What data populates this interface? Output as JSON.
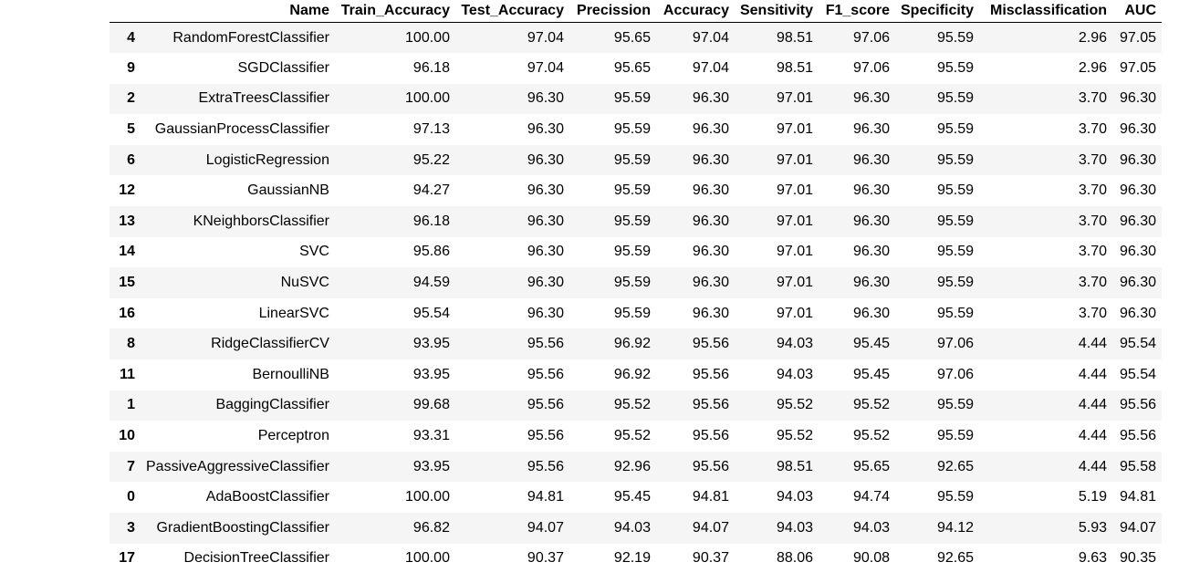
{
  "table": {
    "columns": [
      "",
      "Name",
      "Train_Accuracy",
      "Test_Accuracy",
      "Precission",
      "Accuracy",
      "Sensitivity",
      "F1_score",
      "Specificity",
      "Misclassification",
      "AUC"
    ],
    "rows": [
      [
        "4",
        "RandomForestClassifier",
        "100.00",
        "97.04",
        "95.65",
        "97.04",
        "98.51",
        "97.06",
        "95.59",
        "2.96",
        "97.05"
      ],
      [
        "9",
        "SGDClassifier",
        "96.18",
        "97.04",
        "95.65",
        "97.04",
        "98.51",
        "97.06",
        "95.59",
        "2.96",
        "97.05"
      ],
      [
        "2",
        "ExtraTreesClassifier",
        "100.00",
        "96.30",
        "95.59",
        "96.30",
        "97.01",
        "96.30",
        "95.59",
        "3.70",
        "96.30"
      ],
      [
        "5",
        "GaussianProcessClassifier",
        "97.13",
        "96.30",
        "95.59",
        "96.30",
        "97.01",
        "96.30",
        "95.59",
        "3.70",
        "96.30"
      ],
      [
        "6",
        "LogisticRegression",
        "95.22",
        "96.30",
        "95.59",
        "96.30",
        "97.01",
        "96.30",
        "95.59",
        "3.70",
        "96.30"
      ],
      [
        "12",
        "GaussianNB",
        "94.27",
        "96.30",
        "95.59",
        "96.30",
        "97.01",
        "96.30",
        "95.59",
        "3.70",
        "96.30"
      ],
      [
        "13",
        "KNeighborsClassifier",
        "96.18",
        "96.30",
        "95.59",
        "96.30",
        "97.01",
        "96.30",
        "95.59",
        "3.70",
        "96.30"
      ],
      [
        "14",
        "SVC",
        "95.86",
        "96.30",
        "95.59",
        "96.30",
        "97.01",
        "96.30",
        "95.59",
        "3.70",
        "96.30"
      ],
      [
        "15",
        "NuSVC",
        "94.59",
        "96.30",
        "95.59",
        "96.30",
        "97.01",
        "96.30",
        "95.59",
        "3.70",
        "96.30"
      ],
      [
        "16",
        "LinearSVC",
        "95.54",
        "96.30",
        "95.59",
        "96.30",
        "97.01",
        "96.30",
        "95.59",
        "3.70",
        "96.30"
      ],
      [
        "8",
        "RidgeClassifierCV",
        "93.95",
        "95.56",
        "96.92",
        "95.56",
        "94.03",
        "95.45",
        "97.06",
        "4.44",
        "95.54"
      ],
      [
        "11",
        "BernoulliNB",
        "93.95",
        "95.56",
        "96.92",
        "95.56",
        "94.03",
        "95.45",
        "97.06",
        "4.44",
        "95.54"
      ],
      [
        "1",
        "BaggingClassifier",
        "99.68",
        "95.56",
        "95.52",
        "95.56",
        "95.52",
        "95.52",
        "95.59",
        "4.44",
        "95.56"
      ],
      [
        "10",
        "Perceptron",
        "93.31",
        "95.56",
        "95.52",
        "95.56",
        "95.52",
        "95.52",
        "95.59",
        "4.44",
        "95.56"
      ],
      [
        "7",
        "PassiveAggressiveClassifier",
        "93.95",
        "95.56",
        "92.96",
        "95.56",
        "98.51",
        "95.65",
        "92.65",
        "4.44",
        "95.58"
      ],
      [
        "0",
        "AdaBoostClassifier",
        "100.00",
        "94.81",
        "95.45",
        "94.81",
        "94.03",
        "94.74",
        "95.59",
        "5.19",
        "94.81"
      ],
      [
        "3",
        "GradientBoostingClassifier",
        "96.82",
        "94.07",
        "94.03",
        "94.07",
        "94.03",
        "94.03",
        "94.12",
        "5.93",
        "94.07"
      ],
      [
        "17",
        "DecisionTreeClassifier",
        "100.00",
        "90.37",
        "92.19",
        "90.37",
        "88.06",
        "90.08",
        "92.65",
        "9.63",
        "90.35"
      ]
    ]
  }
}
